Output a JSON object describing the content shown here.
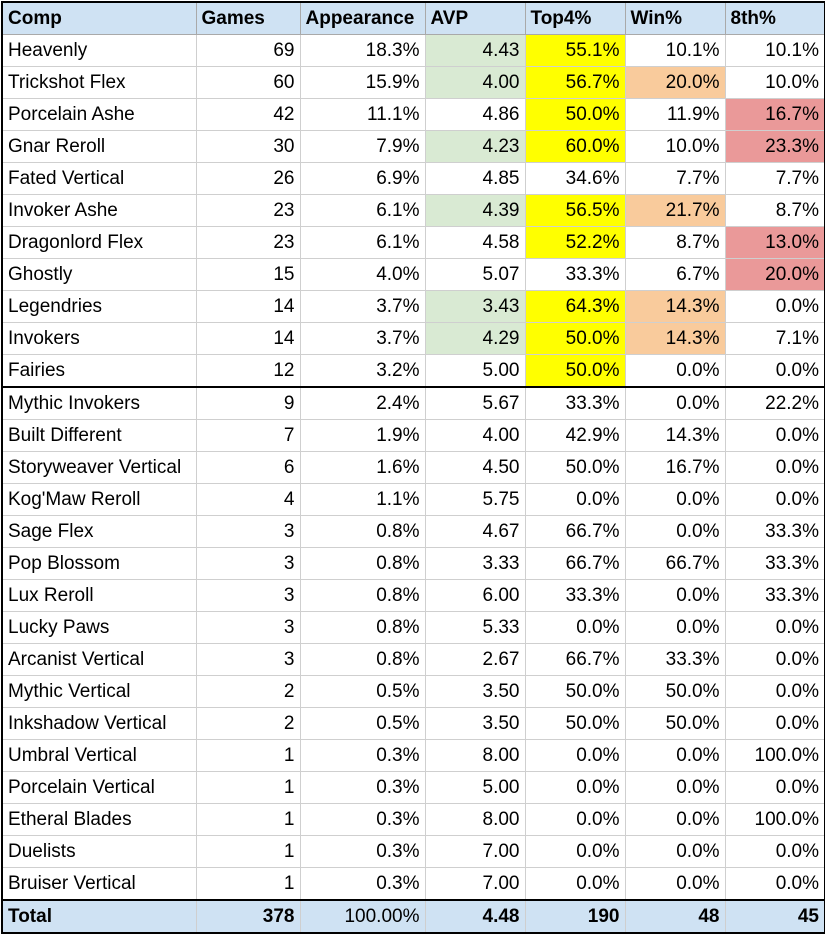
{
  "headers": [
    "Comp",
    "Games",
    "Appearance",
    "AVP",
    "Top4%",
    "Win%",
    "8th%"
  ],
  "colors": {
    "header_bg": "#cfe2f3",
    "avp_good": "#d9ead3",
    "top4_good": "#ffff00",
    "win_good": "#f9cb9c",
    "eighth_bad": "#ea9999"
  },
  "rows": [
    {
      "comp": "Heavenly",
      "games": "69",
      "appearance": "18.3%",
      "avp": "4.43",
      "top4": "55.1%",
      "win": "10.1%",
      "eighth": "10.1%",
      "hl": {
        "avp": "green",
        "top4": "yellow"
      }
    },
    {
      "comp": "Trickshot Flex",
      "games": "60",
      "appearance": "15.9%",
      "avp": "4.00",
      "top4": "56.7%",
      "win": "20.0%",
      "eighth": "10.0%",
      "hl": {
        "avp": "green",
        "top4": "yellow",
        "win": "orange"
      }
    },
    {
      "comp": "Porcelain Ashe",
      "games": "42",
      "appearance": "11.1%",
      "avp": "4.86",
      "top4": "50.0%",
      "win": "11.9%",
      "eighth": "16.7%",
      "hl": {
        "top4": "yellow",
        "eighth": "red"
      }
    },
    {
      "comp": "Gnar Reroll",
      "games": "30",
      "appearance": "7.9%",
      "avp": "4.23",
      "top4": "60.0%",
      "win": "10.0%",
      "eighth": "23.3%",
      "hl": {
        "avp": "green",
        "top4": "yellow",
        "eighth": "red"
      }
    },
    {
      "comp": "Fated Vertical",
      "games": "26",
      "appearance": "6.9%",
      "avp": "4.85",
      "top4": "34.6%",
      "win": "7.7%",
      "eighth": "7.7%",
      "hl": {}
    },
    {
      "comp": "Invoker Ashe",
      "games": "23",
      "appearance": "6.1%",
      "avp": "4.39",
      "top4": "56.5%",
      "win": "21.7%",
      "eighth": "8.7%",
      "hl": {
        "avp": "green",
        "top4": "yellow",
        "win": "orange"
      }
    },
    {
      "comp": "Dragonlord Flex",
      "games": "23",
      "appearance": "6.1%",
      "avp": "4.58",
      "top4": "52.2%",
      "win": "8.7%",
      "eighth": "13.0%",
      "hl": {
        "top4": "yellow",
        "eighth": "red"
      }
    },
    {
      "comp": "Ghostly",
      "games": "15",
      "appearance": "4.0%",
      "avp": "5.07",
      "top4": "33.3%",
      "win": "6.7%",
      "eighth": "20.0%",
      "hl": {
        "eighth": "red"
      }
    },
    {
      "comp": "Legendries",
      "games": "14",
      "appearance": "3.7%",
      "avp": "3.43",
      "top4": "64.3%",
      "win": "14.3%",
      "eighth": "0.0%",
      "hl": {
        "avp": "green",
        "top4": "yellow",
        "win": "orange"
      }
    },
    {
      "comp": "Invokers",
      "games": "14",
      "appearance": "3.7%",
      "avp": "4.29",
      "top4": "50.0%",
      "win": "14.3%",
      "eighth": "7.1%",
      "hl": {
        "avp": "green",
        "top4": "yellow",
        "win": "orange"
      }
    },
    {
      "comp": "Fairies",
      "games": "12",
      "appearance": "3.2%",
      "avp": "5.00",
      "top4": "50.0%",
      "win": "0.0%",
      "eighth": "0.0%",
      "hl": {
        "top4": "yellow"
      },
      "group_end": true
    },
    {
      "comp": "Mythic Invokers",
      "games": "9",
      "appearance": "2.4%",
      "avp": "5.67",
      "top4": "33.3%",
      "win": "0.0%",
      "eighth": "22.2%",
      "hl": {}
    },
    {
      "comp": "Built Different",
      "games": "7",
      "appearance": "1.9%",
      "avp": "4.00",
      "top4": "42.9%",
      "win": "14.3%",
      "eighth": "0.0%",
      "hl": {}
    },
    {
      "comp": "Storyweaver Vertical",
      "games": "6",
      "appearance": "1.6%",
      "avp": "4.50",
      "top4": "50.0%",
      "win": "16.7%",
      "eighth": "0.0%",
      "hl": {}
    },
    {
      "comp": "Kog'Maw Reroll",
      "games": "4",
      "appearance": "1.1%",
      "avp": "5.75",
      "top4": "0.0%",
      "win": "0.0%",
      "eighth": "0.0%",
      "hl": {}
    },
    {
      "comp": "Sage Flex",
      "games": "3",
      "appearance": "0.8%",
      "avp": "4.67",
      "top4": "66.7%",
      "win": "0.0%",
      "eighth": "33.3%",
      "hl": {}
    },
    {
      "comp": "Pop Blossom",
      "games": "3",
      "appearance": "0.8%",
      "avp": "3.33",
      "top4": "66.7%",
      "win": "66.7%",
      "eighth": "33.3%",
      "hl": {}
    },
    {
      "comp": "Lux Reroll",
      "games": "3",
      "appearance": "0.8%",
      "avp": "6.00",
      "top4": "33.3%",
      "win": "0.0%",
      "eighth": "33.3%",
      "hl": {}
    },
    {
      "comp": "Lucky Paws",
      "games": "3",
      "appearance": "0.8%",
      "avp": "5.33",
      "top4": "0.0%",
      "win": "0.0%",
      "eighth": "0.0%",
      "hl": {}
    },
    {
      "comp": "Arcanist Vertical",
      "games": "3",
      "appearance": "0.8%",
      "avp": "2.67",
      "top4": "66.7%",
      "win": "33.3%",
      "eighth": "0.0%",
      "hl": {}
    },
    {
      "comp": "Mythic Vertical",
      "games": "2",
      "appearance": "0.5%",
      "avp": "3.50",
      "top4": "50.0%",
      "win": "50.0%",
      "eighth": "0.0%",
      "hl": {}
    },
    {
      "comp": "Inkshadow Vertical",
      "games": "2",
      "appearance": "0.5%",
      "avp": "3.50",
      "top4": "50.0%",
      "win": "50.0%",
      "eighth": "0.0%",
      "hl": {}
    },
    {
      "comp": "Umbral Vertical",
      "games": "1",
      "appearance": "0.3%",
      "avp": "8.00",
      "top4": "0.0%",
      "win": "0.0%",
      "eighth": "100.0%",
      "hl": {}
    },
    {
      "comp": "Porcelain Vertical",
      "games": "1",
      "appearance": "0.3%",
      "avp": "5.00",
      "top4": "0.0%",
      "win": "0.0%",
      "eighth": "0.0%",
      "hl": {}
    },
    {
      "comp": "Etheral Blades",
      "games": "1",
      "appearance": "0.3%",
      "avp": "8.00",
      "top4": "0.0%",
      "win": "0.0%",
      "eighth": "100.0%",
      "hl": {}
    },
    {
      "comp": "Duelists",
      "games": "1",
      "appearance": "0.3%",
      "avp": "7.00",
      "top4": "0.0%",
      "win": "0.0%",
      "eighth": "0.0%",
      "hl": {}
    },
    {
      "comp": "Bruiser Vertical",
      "games": "1",
      "appearance": "0.3%",
      "avp": "7.00",
      "top4": "0.0%",
      "win": "0.0%",
      "eighth": "0.0%",
      "hl": {}
    }
  ],
  "total": {
    "comp": "Total",
    "games": "378",
    "appearance": "100.00%",
    "avp": "4.48",
    "top4": "190",
    "win": "48",
    "eighth": "45"
  }
}
